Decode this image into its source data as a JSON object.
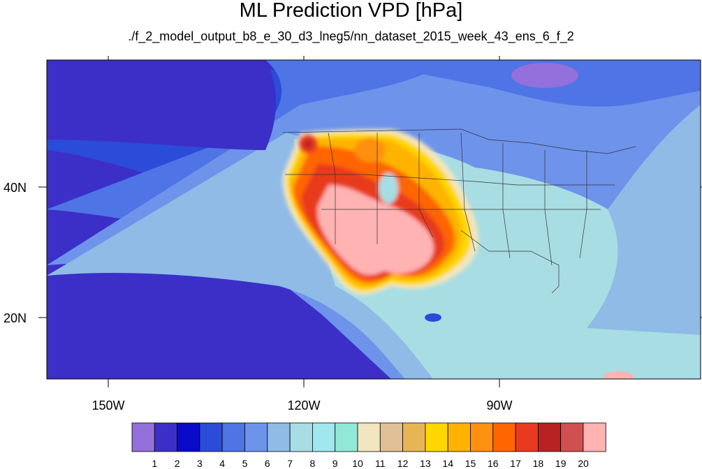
{
  "title": "ML Prediction VPD [hPa]",
  "subtitle": "./f_2_model_output_b8_e_30_d3_lneg5/nn_dataset_2015_week_43_ens_6_f_2",
  "lon_labels": [
    "150W",
    "120W",
    "90W"
  ],
  "lat_labels": [
    "40N",
    "20N"
  ],
  "colorbar": {
    "labels": [
      "1",
      "2",
      "3",
      "4",
      "5",
      "6",
      "7",
      "8",
      "9",
      "10",
      "11",
      "12",
      "13",
      "14",
      "15",
      "16",
      "17",
      "18",
      "19",
      "20"
    ],
    "colors": [
      "#9370db",
      "#3b2fc8",
      "#0a0ac8",
      "#2b4bd9",
      "#4f74e6",
      "#6e93eb",
      "#8fbbe6",
      "#a8dde3",
      "#a0e8ef",
      "#92e8d6",
      "#f2e6c0",
      "#e0c094",
      "#e8b555",
      "#ffd700",
      "#ffb300",
      "#ff9010",
      "#ff6500",
      "#e83a1e",
      "#b82222",
      "#d05050",
      "#ffb3b3"
    ]
  },
  "colors": {
    "ocean_far": "#3d2fc8",
    "ocean_mid": "#4f74e6",
    "ocean_light": "#8fbbe6",
    "land_east": "#a8dde3",
    "hot_core": "#ffb3b3"
  }
}
